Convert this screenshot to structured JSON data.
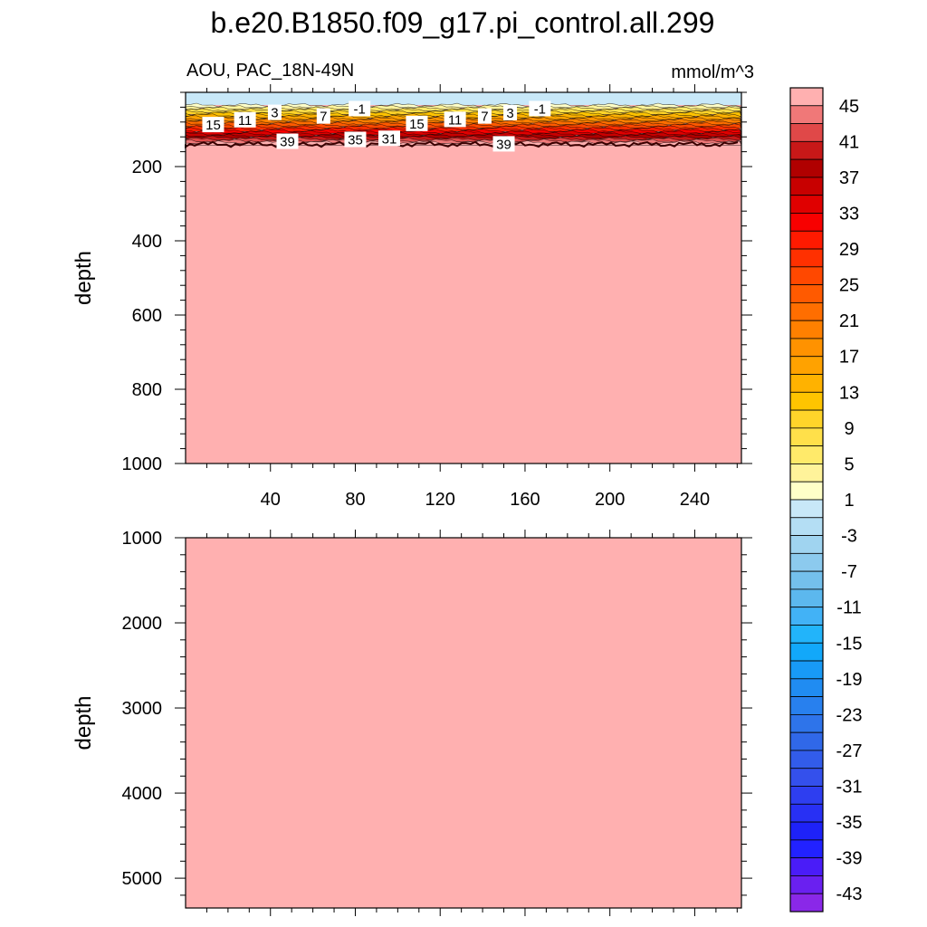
{
  "chart_data": {
    "type": "heatmap",
    "title": "b.e20.B1850.f09_g17.pi_control.all.299",
    "subtitle_left": "AOU, PAC_18N-49N",
    "units": "mmol/m^3",
    "colorbar": {
      "tick_labels": [
        "45",
        "41",
        "37",
        "33",
        "29",
        "25",
        "21",
        "17",
        "13",
        "9",
        "5",
        "1",
        "-3",
        "-7",
        "-11",
        "-15",
        "-19",
        "-23",
        "-27",
        "-31",
        "-35",
        "-39",
        "-43"
      ],
      "levels_top_to_bottom": [
        45,
        43,
        41,
        39,
        37,
        35,
        33,
        31,
        29,
        27,
        25,
        23,
        21,
        19,
        17,
        15,
        13,
        11,
        9,
        7,
        5,
        3,
        1,
        -1,
        -3,
        -5,
        -7,
        -9,
        -11,
        -13,
        -15,
        -17,
        -19,
        -21,
        -23,
        -25,
        -27,
        -29,
        -31,
        -33,
        -35,
        -37,
        -39,
        -41,
        -43,
        -45
      ],
      "colors_top_to_bottom": [
        "#ffb0b0",
        "#f07878",
        "#e04848",
        "#c81818",
        "#b00000",
        "#c80000",
        "#e00000",
        "#f80000",
        "#ff1a00",
        "#ff3000",
        "#ff4800",
        "#ff5a00",
        "#ff6e00",
        "#ff8000",
        "#ff9200",
        "#ffa200",
        "#ffb200",
        "#ffc400",
        "#ffd42a",
        "#ffe04a",
        "#ffea6a",
        "#fff39a",
        "#ffffc8",
        "#c8e8f8",
        "#b4def4",
        "#a0d4f0",
        "#8ccaee",
        "#74c0ec",
        "#5cb8ee",
        "#42b2f6",
        "#22b4fa",
        "#12a8fa",
        "#189af6",
        "#208cf2",
        "#2880ee",
        "#2e74ea",
        "#3068e8",
        "#325cea",
        "#3450ec",
        "#2e3ef0",
        "#2830f4",
        "#1e22f8",
        "#2222ff",
        "#4a1cf8",
        "#6a20f0",
        "#8a28e8"
      ]
    },
    "panels": [
      {
        "ylabel": "depth",
        "ylim": [
          1000,
          0
        ],
        "xlim": [
          0,
          262
        ],
        "xticks": [
          40,
          80,
          120,
          160,
          200,
          240
        ],
        "yticks": [
          200,
          400,
          600,
          800,
          1000
        ],
        "surface_value": -1,
        "mixed_layer_bottom_depth": 140,
        "deep_value": 45,
        "contour_labels": [
          {
            "text": "15",
            "x": 13,
            "depth": 88
          },
          {
            "text": "11",
            "x": 28,
            "depth": 75
          },
          {
            "text": "3",
            "x": 42,
            "depth": 55
          },
          {
            "text": "7",
            "x": 65,
            "depth": 65
          },
          {
            "text": "-1",
            "x": 82,
            "depth": 45
          },
          {
            "text": "39",
            "x": 48,
            "depth": 133
          },
          {
            "text": "35",
            "x": 80,
            "depth": 128
          },
          {
            "text": "31",
            "x": 96,
            "depth": 125
          },
          {
            "text": "15",
            "x": 109,
            "depth": 85
          },
          {
            "text": "11",
            "x": 127,
            "depth": 74
          },
          {
            "text": "7",
            "x": 141,
            "depth": 65
          },
          {
            "text": "3",
            "x": 153,
            "depth": 56
          },
          {
            "text": "-1",
            "x": 167,
            "depth": 45
          },
          {
            "text": "39",
            "x": 150,
            "depth": 140
          }
        ]
      },
      {
        "ylabel": "depth",
        "ylim": [
          5350,
          1000
        ],
        "xlim": [
          0,
          262
        ],
        "xticks": [
          40,
          80,
          120,
          160,
          200,
          240
        ],
        "yticks": [
          1000,
          2000,
          3000,
          4000,
          5000
        ],
        "deep_value": 45
      }
    ]
  }
}
